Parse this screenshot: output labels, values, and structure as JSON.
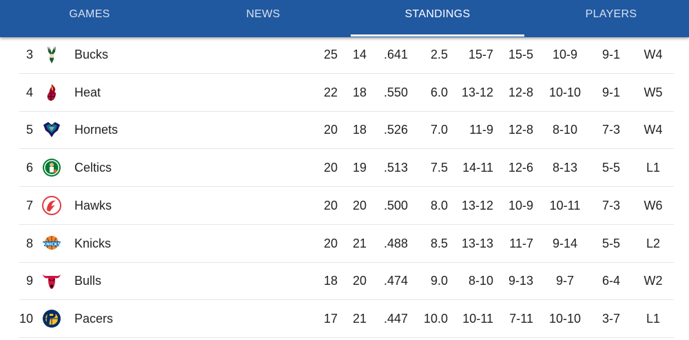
{
  "nav": {
    "tabs": [
      {
        "label": "GAMES"
      },
      {
        "label": "NEWS"
      },
      {
        "label": "STANDINGS"
      },
      {
        "label": "PLAYERS"
      }
    ],
    "active": "STANDINGS",
    "bar_color": "#2159a1"
  },
  "standings": [
    {
      "rank": "3",
      "team": "Bucks",
      "logo": "bucks-logo-icon",
      "w": "25",
      "l": "14",
      "pct": ".641",
      "gb": "2.5",
      "home": "15-7",
      "away": "15-5",
      "div": "10-9",
      "l10": "9-1",
      "strk": "W4"
    },
    {
      "rank": "4",
      "team": "Heat",
      "logo": "heat-logo-icon",
      "w": "22",
      "l": "18",
      "pct": ".550",
      "gb": "6.0",
      "home": "13-12",
      "away": "12-8",
      "div": "10-10",
      "l10": "9-1",
      "strk": "W5"
    },
    {
      "rank": "5",
      "team": "Hornets",
      "logo": "hornets-logo-icon",
      "w": "20",
      "l": "18",
      "pct": ".526",
      "gb": "7.0",
      "home": "11-9",
      "away": "12-8",
      "div": "8-10",
      "l10": "7-3",
      "strk": "W4"
    },
    {
      "rank": "6",
      "team": "Celtics",
      "logo": "celtics-logo-icon",
      "w": "20",
      "l": "19",
      "pct": ".513",
      "gb": "7.5",
      "home": "14-11",
      "away": "12-6",
      "div": "8-13",
      "l10": "5-5",
      "strk": "L1"
    },
    {
      "rank": "7",
      "team": "Hawks",
      "logo": "hawks-logo-icon",
      "w": "20",
      "l": "20",
      "pct": ".500",
      "gb": "8.0",
      "home": "13-12",
      "away": "10-9",
      "div": "10-11",
      "l10": "7-3",
      "strk": "W6"
    },
    {
      "rank": "8",
      "team": "Knicks",
      "logo": "knicks-logo-icon",
      "w": "20",
      "l": "21",
      "pct": ".488",
      "gb": "8.5",
      "home": "13-13",
      "away": "11-7",
      "div": "9-14",
      "l10": "5-5",
      "strk": "L2"
    },
    {
      "rank": "9",
      "team": "Bulls",
      "logo": "bulls-logo-icon",
      "w": "18",
      "l": "20",
      "pct": ".474",
      "gb": "9.0",
      "home": "8-10",
      "away": "9-13",
      "div": "9-7",
      "l10": "6-4",
      "strk": "W2"
    },
    {
      "rank": "10",
      "team": "Pacers",
      "logo": "pacers-logo-icon",
      "w": "17",
      "l": "21",
      "pct": ".447",
      "gb": "10.0",
      "home": "10-11",
      "away": "7-11",
      "div": "10-10",
      "l10": "3-7",
      "strk": "L1"
    }
  ]
}
